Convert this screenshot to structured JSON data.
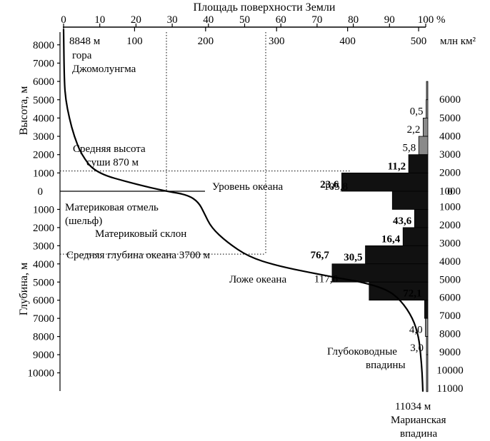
{
  "chart_data": {
    "type": "area",
    "title": "Площадь поверхности Земли",
    "top_axis_percent": {
      "ticks": [
        0,
        10,
        20,
        30,
        40,
        50,
        60,
        70,
        80,
        90,
        100
      ],
      "unit": "%"
    },
    "top_axis_area": {
      "ticks": [
        0,
        100,
        200,
        300,
        400,
        500
      ],
      "unit": "млн км²"
    },
    "left_axis_height": {
      "label": "Высота, м",
      "ticks": [
        8000,
        7000,
        6000,
        5000,
        4000,
        3000,
        2000,
        1000
      ]
    },
    "left_axis_zero": "0",
    "left_axis_depth": {
      "label": "Глубина, м",
      "ticks": [
        1000,
        2000,
        3000,
        4000,
        5000,
        6000,
        7000,
        8000,
        9000,
        10000
      ]
    },
    "right_axis_height_ticks": [
      6000,
      5000,
      4000,
      3000,
      2000,
      1000
    ],
    "right_axis_zero": "0",
    "right_axis_depth_ticks": [
      1000,
      2000,
      3000,
      4000,
      5000,
      6000,
      7000,
      8000,
      9000,
      10000,
      11000
    ],
    "hypsographic_curve": {
      "x_unit": "млн км²",
      "points": [
        {
          "area": 0,
          "height": 8848
        },
        {
          "area": 1,
          "height": 6000
        },
        {
          "area": 3,
          "height": 5000
        },
        {
          "area": 8,
          "height": 4000
        },
        {
          "area": 15,
          "height": 3000
        },
        {
          "area": 25,
          "height": 2000
        },
        {
          "area": 45,
          "height": 1000
        },
        {
          "area": 100,
          "height": 400
        },
        {
          "area": 145,
          "height": 0
        },
        {
          "area": 175,
          "height": -200
        },
        {
          "area": 190,
          "height": -600
        },
        {
          "area": 198,
          "height": -1200
        },
        {
          "area": 208,
          "height": -2000
        },
        {
          "area": 230,
          "height": -2800
        },
        {
          "area": 260,
          "height": -3600
        },
        {
          "area": 300,
          "height": -4100
        },
        {
          "area": 350,
          "height": -4500
        },
        {
          "area": 390,
          "height": -4800
        },
        {
          "area": 420,
          "height": -5000
        },
        {
          "area": 455,
          "height": -5400
        },
        {
          "area": 475,
          "height": -6000
        },
        {
          "area": 492,
          "height": -7000
        },
        {
          "area": 500,
          "height": -8000
        },
        {
          "area": 503,
          "height": -9000
        },
        {
          "area": 505,
          "height": -10000
        },
        {
          "area": 506,
          "height": -11034
        }
      ]
    },
    "histogram": {
      "unit": "млн км²",
      "bins": [
        {
          "from": 5000,
          "to": 6000,
          "label": "",
          "value": 0.5,
          "shade": "light"
        },
        {
          "from": 4000,
          "to": 5000,
          "label": "0,5",
          "value": 2.2,
          "shade": "light"
        },
        {
          "from": 3000,
          "to": 4000,
          "label": "2,2",
          "value": 5.8,
          "shade": "light"
        },
        {
          "from": 2000,
          "to": 3000,
          "label": "5,8",
          "value": 11.2,
          "shade": "light"
        },
        {
          "from": 1000,
          "to": 2000,
          "label": "11,2",
          "value": 23.6,
          "shade": "dark"
        },
        {
          "from": 0,
          "to": 1000,
          "label": "23,6",
          "value": 105.8,
          "shade": "dark"
        },
        {
          "from": -1000,
          "to": 0,
          "label": "105,8",
          "value": 43.6,
          "shade": "dark"
        },
        {
          "from": -2000,
          "to": -1000,
          "label": "43,6",
          "value": 16.4,
          "shade": "dark"
        },
        {
          "from": -3000,
          "to": -2000,
          "label": "16,4",
          "value": 30.5,
          "shade": "dark"
        },
        {
          "from": -4000,
          "to": -3000,
          "label": "30,5",
          "value": 76.7,
          "shade": "dark"
        },
        {
          "from": -5000,
          "to": -4000,
          "label": "76,7",
          "value": 117.6,
          "shade": "dark"
        },
        {
          "from": -6000,
          "to": -5000,
          "label": "117,6",
          "value": 72.1,
          "shade": "dark"
        },
        {
          "from": -7000,
          "to": -6000,
          "label": "72,1",
          "value": 4.0,
          "shade": "dark"
        },
        {
          "from": -8000,
          "to": -7000,
          "label": "4,0",
          "value": 3.0,
          "shade": "light"
        },
        {
          "from": -9000,
          "to": -8000,
          "label": "3,0",
          "value": 0.3,
          "shade": "light"
        },
        {
          "from": -11034,
          "to": -9000,
          "label": "",
          "value": 0.1,
          "shade": "light"
        }
      ]
    },
    "annotations": {
      "peak_value": "8848 м",
      "peak_line1": "гора",
      "peak_line2": "Джомолунгма",
      "mean_land_line1": "Средняя высота",
      "mean_land_line2": "суши 870 м",
      "sea_level": "Уровень океана",
      "shelf_line1": "Материковая отмель",
      "shelf_line2": "(шельф)",
      "slope": "Материковый склон",
      "mean_depth": "Средняя глубина океана 3700 м",
      "ocean_floor": "Ложе океана",
      "trenches_line1": "Глубоководные",
      "trenches_line2": "впадины",
      "trench_depth": "11034 м",
      "trench_line1": "Марианская",
      "trench_line2": "впадина"
    },
    "reference_lines": {
      "mean_land_height": 870,
      "mean_ocean_depth": -3700
    },
    "grid": false
  }
}
